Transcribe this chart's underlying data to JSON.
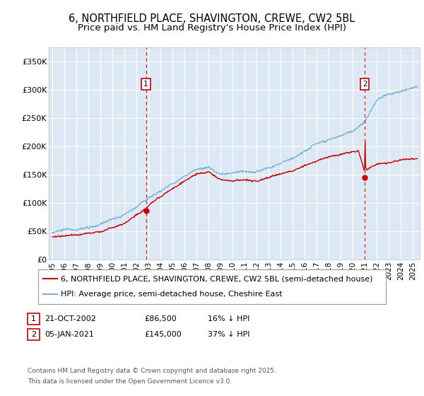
{
  "title_line1": "6, NORTHFIELD PLACE, SHAVINGTON, CREWE, CW2 5BL",
  "title_line2": "Price paid vs. HM Land Registry's House Price Index (HPI)",
  "fig_bg_color": "#ffffff",
  "plot_bg_color": "#dce9f5",
  "hpi_color": "#7ab3d4",
  "price_color": "#cc0000",
  "dashed_color": "#cc0000",
  "ylim": [
    0,
    375000
  ],
  "yticks": [
    0,
    50000,
    100000,
    150000,
    200000,
    250000,
    300000,
    350000
  ],
  "ytick_labels": [
    "£0",
    "£50K",
    "£100K",
    "£150K",
    "£200K",
    "£250K",
    "£300K",
    "£350K"
  ],
  "xlim_start": 1994.7,
  "xlim_end": 2025.6,
  "xticks": [
    1995,
    1996,
    1997,
    1998,
    1999,
    2000,
    2001,
    2002,
    2003,
    2004,
    2005,
    2006,
    2007,
    2008,
    2009,
    2010,
    2011,
    2012,
    2013,
    2014,
    2015,
    2016,
    2017,
    2018,
    2019,
    2020,
    2021,
    2022,
    2023,
    2024,
    2025
  ],
  "sale1_date": 2002.8,
  "sale1_price": 86500,
  "sale2_date": 2021.02,
  "sale2_price": 145000,
  "legend_line1": "6, NORTHFIELD PLACE, SHAVINGTON, CREWE, CW2 5BL (semi-detached house)",
  "legend_line2": "HPI: Average price, semi-detached house, Cheshire East",
  "ann1_date": "21-OCT-2002",
  "ann1_price": "£86,500",
  "ann1_hpi": "16% ↓ HPI",
  "ann2_date": "05-JAN-2021",
  "ann2_price": "£145,000",
  "ann2_hpi": "37% ↓ HPI",
  "footnote_line1": "Contains HM Land Registry data © Crown copyright and database right 2025.",
  "footnote_line2": "This data is licensed under the Open Government Licence v3.0.",
  "grid_color": "#ffffff",
  "title_fontsize": 10.5,
  "subtitle_fontsize": 9.5,
  "tick_fontsize": 8,
  "legend_fontsize": 8,
  "ann_fontsize": 8,
  "footnote_fontsize": 6.5
}
